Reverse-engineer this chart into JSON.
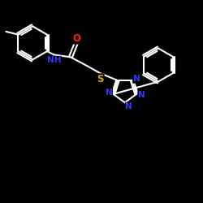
{
  "background_color": "#000000",
  "bond_color": "#ffffff",
  "atom_colors": {
    "O": "#ff2200",
    "N": "#3333ff",
    "S": "#ccaa00",
    "C": "#ffffff"
  },
  "figsize": [
    2.5,
    2.5
  ],
  "dpi": 100,
  "xlim": [
    0,
    10
  ],
  "ylim": [
    0,
    10
  ],
  "lw": 1.5,
  "ring_r": 0.82,
  "tz_r": 0.6
}
